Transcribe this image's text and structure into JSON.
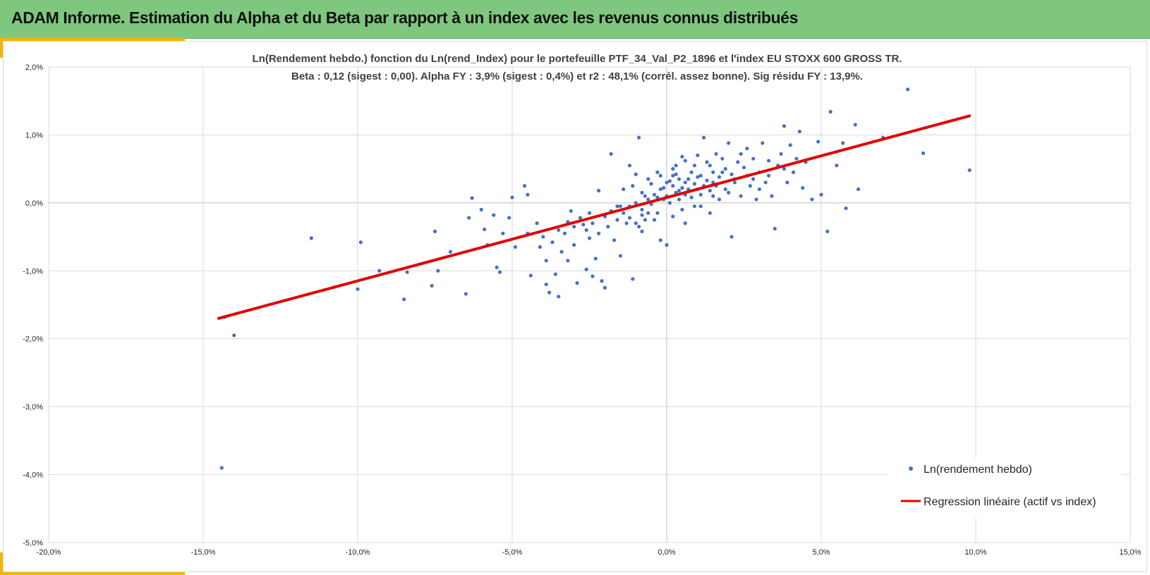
{
  "header": {
    "title": "ADAM Informe. Estimation du Alpha et du Beta par rapport à un index avec les revenus connus distribués"
  },
  "colors": {
    "header_bg": "#7fc77f",
    "accent": "#f2b705",
    "points": "#4472c4",
    "regression": "#e00000",
    "grid": "#d9d9d9"
  },
  "chart_data": {
    "type": "scatter",
    "title": "Ln(Rendement hebdo.) fonction du Ln(rend_Index) pour le portefeuille PTF_34_Val_P2_1896 et l'index EU STOXX 600 GROSS TR.",
    "subtitle": "Beta : 0,12 (sigest : 0,00).  Alpha FY : 3,9% (sigest : 0,4%) et r2 : 48,1% (corrél. assez bonne). Sig résidu FY : 13,9%.",
    "xlabel": "",
    "ylabel": "",
    "xlim": [
      -20,
      15
    ],
    "ylim": [
      -5,
      2
    ],
    "x_ticks": [
      "-20,0%",
      "-15,0%",
      "-10,0%",
      "-5,0%",
      "0,0%",
      "5,0%",
      "10,0%",
      "15,0%"
    ],
    "y_ticks": [
      "2,0%",
      "1,0%",
      "0,0%",
      "-1,0%",
      "-2,0%",
      "-3,0%",
      "-4,0%",
      "-5,0%"
    ],
    "grid": true,
    "legend_position": "bottom-right",
    "series": [
      {
        "name": "Ln(rendement hebdo)",
        "type": "scatter",
        "points": [
          [
            -14.4,
            -3.9
          ],
          [
            -14.0,
            -1.95
          ],
          [
            -14.3,
            -1.68
          ],
          [
            -11.5,
            -0.52
          ],
          [
            -10.0,
            -1.27
          ],
          [
            -9.9,
            -0.58
          ],
          [
            -9.3,
            -1.0
          ],
          [
            -8.5,
            -1.42
          ],
          [
            -8.4,
            -1.02
          ],
          [
            -7.6,
            -1.22
          ],
          [
            -7.5,
            -0.42
          ],
          [
            -7.4,
            -1.0
          ],
          [
            -7.0,
            -0.72
          ],
          [
            -6.5,
            -1.34
          ],
          [
            -6.4,
            -0.22
          ],
          [
            -6.3,
            0.07
          ],
          [
            -6.0,
            -0.1
          ],
          [
            -5.9,
            -0.39
          ],
          [
            -5.8,
            -0.62
          ],
          [
            -5.6,
            -0.18
          ],
          [
            -5.5,
            -0.95
          ],
          [
            -5.4,
            -1.02
          ],
          [
            -5.3,
            -0.45
          ],
          [
            -5.1,
            -0.22
          ],
          [
            -5.0,
            0.08
          ],
          [
            -4.9,
            -0.65
          ],
          [
            -4.6,
            0.25
          ],
          [
            -4.5,
            0.12
          ],
          [
            -4.4,
            -1.07
          ],
          [
            -4.2,
            -0.3
          ],
          [
            -4.1,
            -0.65
          ],
          [
            -3.9,
            -1.2
          ],
          [
            -3.9,
            -0.85
          ],
          [
            -3.8,
            -1.32
          ],
          [
            -3.7,
            -0.58
          ],
          [
            -3.6,
            -1.05
          ],
          [
            -3.5,
            -1.38
          ],
          [
            -3.4,
            -0.72
          ],
          [
            -3.3,
            -0.45
          ],
          [
            -3.2,
            -0.85
          ],
          [
            -3.1,
            -0.12
          ],
          [
            -3.0,
            -0.62
          ],
          [
            -2.9,
            -1.18
          ],
          [
            -2.7,
            -0.32
          ],
          [
            -2.6,
            -0.98
          ],
          [
            -2.5,
            -0.52
          ],
          [
            -2.4,
            -1.08
          ],
          [
            -2.3,
            -0.82
          ],
          [
            -2.2,
            0.18
          ],
          [
            -2.1,
            -1.15
          ],
          [
            -2.0,
            -1.25
          ],
          [
            -1.9,
            -0.35
          ],
          [
            -1.8,
            0.72
          ],
          [
            -1.7,
            -0.55
          ],
          [
            -1.6,
            -0.05
          ],
          [
            -1.5,
            -0.78
          ],
          [
            -1.4,
            0.2
          ],
          [
            -1.3,
            -0.3
          ],
          [
            -1.2,
            0.55
          ],
          [
            -1.1,
            -1.12
          ],
          [
            -1.0,
            0.42
          ],
          [
            -0.9,
            0.96
          ],
          [
            -0.8,
            -0.42
          ],
          [
            -0.7,
            0.1
          ],
          [
            -0.6,
            -0.15
          ],
          [
            -0.5,
            0.28
          ],
          [
            -0.4,
            -0.25
          ],
          [
            -0.3,
            0.45
          ],
          [
            -0.2,
            -0.55
          ],
          [
            -0.1,
            0.05
          ],
          [
            0.0,
            -0.62
          ],
          [
            0.1,
            0.32
          ],
          [
            0.2,
            -0.2
          ],
          [
            0.3,
            0.55
          ],
          [
            0.4,
            0.05
          ],
          [
            0.5,
            0.68
          ],
          [
            0.6,
            -0.3
          ],
          [
            0.7,
            0.2
          ],
          [
            0.8,
            0.45
          ],
          [
            0.9,
            -0.05
          ],
          [
            1.0,
            0.38
          ],
          [
            1.1,
            0.12
          ],
          [
            1.2,
            0.96
          ],
          [
            1.3,
            0.6
          ],
          [
            1.4,
            -0.15
          ],
          [
            1.5,
            0.3
          ],
          [
            1.6,
            0.72
          ],
          [
            1.7,
            0.05
          ],
          [
            1.8,
            0.45
          ],
          [
            1.9,
            0.2
          ],
          [
            2.0,
            0.88
          ],
          [
            2.1,
            -0.5
          ],
          [
            2.2,
            0.35
          ],
          [
            2.3,
            0.6
          ],
          [
            2.4,
            0.1
          ],
          [
            2.5,
            0.52
          ],
          [
            2.6,
            0.8
          ],
          [
            2.7,
            0.25
          ],
          [
            2.8,
            0.65
          ],
          [
            2.9,
            0.05
          ],
          [
            3.0,
            0.45
          ],
          [
            3.1,
            0.88
          ],
          [
            3.2,
            0.3
          ],
          [
            3.3,
            0.62
          ],
          [
            3.4,
            0.1
          ],
          [
            3.5,
            -0.38
          ],
          [
            3.6,
            0.55
          ],
          [
            3.7,
            0.72
          ],
          [
            3.8,
            1.13
          ],
          [
            3.9,
            0.3
          ],
          [
            4.0,
            0.85
          ],
          [
            4.1,
            0.45
          ],
          [
            4.2,
            0.65
          ],
          [
            4.3,
            1.05
          ],
          [
            4.4,
            0.22
          ],
          [
            4.5,
            0.6
          ],
          [
            4.7,
            0.05
          ],
          [
            4.9,
            0.9
          ],
          [
            5.0,
            0.12
          ],
          [
            5.2,
            -0.42
          ],
          [
            5.3,
            1.34
          ],
          [
            5.5,
            0.55
          ],
          [
            5.7,
            0.88
          ],
          [
            5.8,
            -0.08
          ],
          [
            6.1,
            1.15
          ],
          [
            6.2,
            0.2
          ],
          [
            7.0,
            0.96
          ],
          [
            7.8,
            1.67
          ],
          [
            8.3,
            0.73
          ],
          [
            9.8,
            0.48
          ],
          [
            -0.8,
            0.15
          ],
          [
            -0.6,
            0.05
          ],
          [
            -0.4,
            0.12
          ],
          [
            -0.2,
            0.2
          ],
          [
            0.0,
            0.1
          ],
          [
            0.2,
            0.25
          ],
          [
            0.4,
            0.18
          ],
          [
            0.6,
            0.3
          ],
          [
            -1.2,
            -0.05
          ],
          [
            -1.0,
            0.0
          ],
          [
            -0.8,
            -0.1
          ],
          [
            -0.5,
            -0.02
          ],
          [
            -0.3,
            0.08
          ],
          [
            0.1,
            0.0
          ],
          [
            0.3,
            0.15
          ],
          [
            0.5,
            0.22
          ],
          [
            0.7,
            0.35
          ],
          [
            0.9,
            0.28
          ],
          [
            1.1,
            0.4
          ],
          [
            1.3,
            0.33
          ],
          [
            1.5,
            0.45
          ],
          [
            1.7,
            0.38
          ],
          [
            1.9,
            0.5
          ],
          [
            2.1,
            0.42
          ],
          [
            -2.0,
            -0.2
          ],
          [
            -1.8,
            -0.12
          ],
          [
            -1.6,
            -0.25
          ],
          [
            -1.4,
            -0.15
          ],
          [
            -1.2,
            -0.22
          ],
          [
            -1.0,
            -0.3
          ],
          [
            -0.8,
            -0.18
          ],
          [
            0.0,
            0.3
          ],
          [
            0.2,
            0.4
          ],
          [
            0.4,
            0.35
          ],
          [
            0.6,
            0.12
          ],
          [
            0.8,
            0.08
          ],
          [
            1.0,
            0.2
          ],
          [
            1.2,
            0.25
          ],
          [
            1.4,
            0.18
          ],
          [
            -3.0,
            -0.35
          ],
          [
            -2.8,
            -0.22
          ],
          [
            -2.6,
            -0.4
          ],
          [
            -2.4,
            -0.3
          ],
          [
            -2.2,
            -0.45
          ],
          [
            -3.5,
            -0.4
          ],
          [
            -4.0,
            -0.5
          ],
          [
            -4.5,
            -0.45
          ],
          [
            -3.2,
            -0.28
          ],
          [
            -2.5,
            -0.15
          ],
          [
            -1.5,
            -0.05
          ],
          [
            -0.1,
            0.22
          ],
          [
            0.3,
            0.42
          ],
          [
            0.9,
            0.55
          ],
          [
            1.6,
            0.25
          ],
          [
            2.2,
            0.3
          ],
          [
            2.6,
            0.4
          ],
          [
            3.0,
            0.2
          ],
          [
            -0.6,
            0.35
          ],
          [
            -0.2,
            0.4
          ],
          [
            0.2,
            0.5
          ],
          [
            0.6,
            0.62
          ],
          [
            1.0,
            0.7
          ],
          [
            1.4,
            0.55
          ],
          [
            1.8,
            0.65
          ],
          [
            2.4,
            0.72
          ],
          [
            -1.1,
            0.25
          ],
          [
            -0.9,
            -0.35
          ],
          [
            -0.7,
            -0.25
          ],
          [
            -0.3,
            -0.15
          ],
          [
            0.5,
            -0.1
          ],
          [
            1.1,
            -0.05
          ],
          [
            1.5,
            0.1
          ],
          [
            2.0,
            0.15
          ],
          [
            2.8,
            0.35
          ],
          [
            3.3,
            0.4
          ],
          [
            3.8,
            0.5
          ]
        ]
      },
      {
        "name": "Regression linéaire (actif vs index)",
        "type": "line",
        "points": [
          [
            -14.5,
            -1.7
          ],
          [
            9.8,
            1.28
          ]
        ]
      }
    ]
  }
}
